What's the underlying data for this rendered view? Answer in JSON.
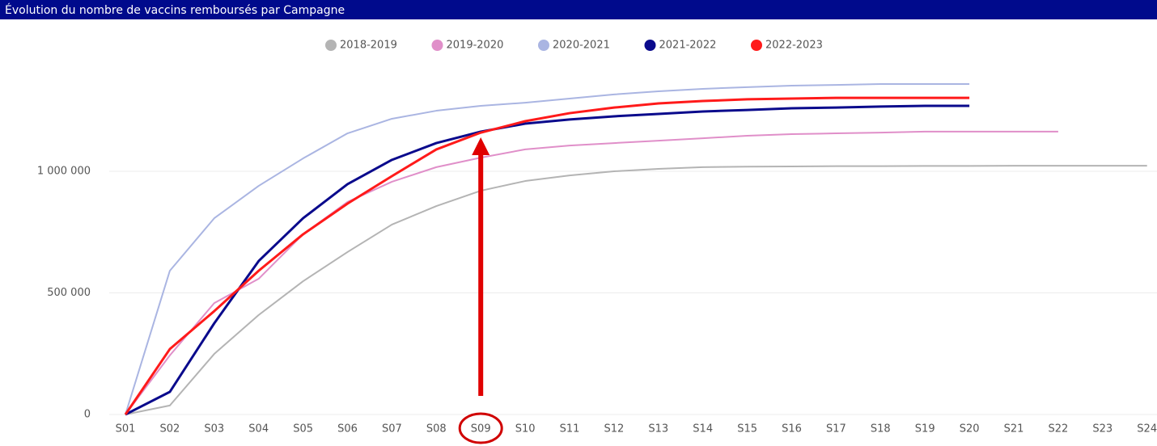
{
  "chart_data": {
    "type": "line",
    "title": "Évolution du nombre de vaccins remboursés par Campagne",
    "categories": [
      "S01",
      "S02",
      "S03",
      "S04",
      "S05",
      "S06",
      "S07",
      "S08",
      "S09",
      "S10",
      "S11",
      "S12",
      "S13",
      "S14",
      "S15",
      "S16",
      "S17",
      "S18",
      "S19",
      "S20",
      "S21",
      "S22",
      "S23",
      "S24"
    ],
    "series": [
      {
        "name": "2018-2019",
        "color": "#b4b4b4",
        "values": [
          0,
          37000,
          249000,
          409000,
          548000,
          668000,
          781000,
          857000,
          920000,
          960000,
          983000,
          1000000,
          1010000,
          1017000,
          1019000,
          1020000,
          1021000,
          1021000,
          1022000,
          1022000,
          1023000,
          1023000,
          1023000,
          1023000
        ]
      },
      {
        "name": "2019-2020",
        "color": "#e08fc9",
        "values": [
          0,
          243000,
          458000,
          558000,
          741000,
          874000,
          957000,
          1017000,
          1056000,
          1090000,
          1106000,
          1116000,
          1126000,
          1136000,
          1146000,
          1153000,
          1156000,
          1159000,
          1163000,
          1163000,
          1163000,
          1163000,
          null,
          null
        ]
      },
      {
        "name": "2020-2021",
        "color": "#aab5e2",
        "values": [
          0,
          591000,
          807000,
          940000,
          1053000,
          1156000,
          1216000,
          1249000,
          1269000,
          1282000,
          1299000,
          1316000,
          1329000,
          1339000,
          1346000,
          1352000,
          1355000,
          1359000,
          1359000,
          1359000,
          null,
          null,
          null,
          null
        ]
      },
      {
        "name": "2021-2022",
        "color": "#0a0a8c",
        "values": [
          0,
          93000,
          375000,
          631000,
          807000,
          947000,
          1047000,
          1116000,
          1163000,
          1196000,
          1213000,
          1226000,
          1236000,
          1246000,
          1252000,
          1259000,
          1262000,
          1266000,
          1269000,
          1269000,
          null,
          null,
          null,
          null
        ]
      },
      {
        "name": "2022-2023",
        "color": "#ff1a1a",
        "values": [
          0,
          269000,
          425000,
          591000,
          741000,
          867000,
          980000,
          1090000,
          1159000,
          1206000,
          1239000,
          1262000,
          1279000,
          1289000,
          1296000,
          1299000,
          1302000,
          1302000,
          1302000,
          1302000,
          null,
          null,
          null,
          null
        ]
      }
    ],
    "ylim": [
      0,
      1400000
    ],
    "yticks": [
      0,
      {
        "value": 500000,
        "label": "500 000"
      },
      {
        "value": 1000000,
        "label": "1 000 000"
      }
    ],
    "grid": true
  }
}
